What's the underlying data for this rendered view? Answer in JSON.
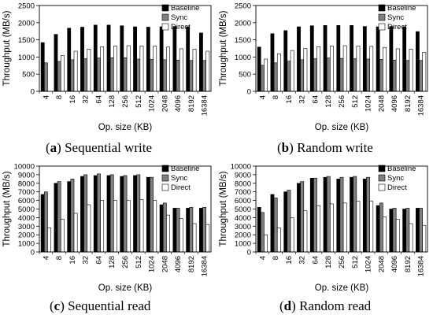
{
  "figure": {
    "captions": [
      {
        "letter": "a",
        "text": "Sequential write"
      },
      {
        "letter": "b",
        "text": "Random write"
      },
      {
        "letter": "c",
        "text": "Sequential read"
      },
      {
        "letter": "d",
        "text": "Random read"
      }
    ]
  },
  "chart_data": [
    {
      "type": "bar",
      "categories": [
        "4",
        "8",
        "16",
        "32",
        "64",
        "128",
        "256",
        "512",
        "1024",
        "2048",
        "4096",
        "8192",
        "16384"
      ],
      "xlabel": "Op. size (KB)",
      "ylabel": "Throughput (MB/s)",
      "ylim": [
        0,
        2500
      ],
      "yticks": [
        0,
        500,
        1000,
        1500,
        2000,
        2500
      ],
      "legend_position": "top-right",
      "grid": false,
      "series": [
        {
          "name": "Baseline",
          "color": "#000000",
          "values": [
            1420,
            1660,
            1840,
            1870,
            1930,
            1930,
            1910,
            1880,
            1870,
            1880,
            1890,
            1880,
            1700
          ]
        },
        {
          "name": "Sync",
          "color": "#808080",
          "values": [
            830,
            870,
            920,
            950,
            970,
            980,
            980,
            940,
            930,
            920,
            910,
            900,
            900
          ]
        },
        {
          "name": "Direct",
          "color": "#ffffff",
          "values": [
            0,
            1040,
            1170,
            1230,
            1300,
            1320,
            1330,
            1320,
            1320,
            1290,
            1240,
            1230,
            1170
          ]
        }
      ]
    },
    {
      "type": "bar",
      "categories": [
        "4",
        "8",
        "16",
        "32",
        "64",
        "128",
        "256",
        "512",
        "1024",
        "2048",
        "4096",
        "8192",
        "16384"
      ],
      "xlabel": "Op. size (KB)",
      "ylabel": "Throughput (MB/s)",
      "ylim": [
        0,
        2500
      ],
      "yticks": [
        0,
        500,
        1000,
        1500,
        2000,
        2500
      ],
      "legend_position": "top-right",
      "grid": false,
      "series": [
        {
          "name": "Baseline",
          "color": "#000000",
          "values": [
            1290,
            1680,
            1770,
            1880,
            1910,
            1920,
            1920,
            1920,
            1890,
            1880,
            1890,
            1880,
            1740
          ]
        },
        {
          "name": "Sync",
          "color": "#808080",
          "values": [
            760,
            830,
            880,
            920,
            950,
            970,
            960,
            950,
            940,
            930,
            910,
            900,
            900
          ]
        },
        {
          "name": "Direct",
          "color": "#ffffff",
          "values": [
            940,
            1090,
            1190,
            1250,
            1300,
            1320,
            1330,
            1320,
            1310,
            1280,
            1240,
            1230,
            1140
          ]
        }
      ]
    },
    {
      "type": "bar",
      "categories": [
        "4",
        "8",
        "16",
        "32",
        "64",
        "128",
        "256",
        "512",
        "1024",
        "2048",
        "4096",
        "8192",
        "16384"
      ],
      "xlabel": "Op. size (KB)",
      "ylabel": "Throughput (MB/s)",
      "ylim": [
        0,
        10000
      ],
      "yticks": [
        0,
        1000,
        2000,
        3000,
        4000,
        5000,
        6000,
        7000,
        8000,
        9000,
        10000
      ],
      "legend_position": "top-right",
      "grid": false,
      "series": [
        {
          "name": "Baseline",
          "color": "#000000",
          "values": [
            6700,
            8000,
            8200,
            8800,
            8900,
            8900,
            8800,
            8900,
            8700,
            5500,
            5100,
            5100,
            5100
          ]
        },
        {
          "name": "Sync",
          "color": "#808080",
          "values": [
            7000,
            8200,
            8500,
            9000,
            9100,
            9000,
            8900,
            9000,
            8700,
            5700,
            5100,
            5200,
            5200
          ]
        },
        {
          "name": "Direct",
          "color": "#ffffff",
          "values": [
            2800,
            3800,
            4500,
            5500,
            6000,
            6000,
            6000,
            6100,
            6000,
            4300,
            3900,
            3300,
            3200
          ]
        }
      ]
    },
    {
      "type": "bar",
      "categories": [
        "4",
        "8",
        "16",
        "32",
        "64",
        "128",
        "256",
        "512",
        "1024",
        "2048",
        "4096",
        "8192",
        "16384"
      ],
      "xlabel": "Op. size (KB)",
      "ylabel": "Throughput (MB/s)",
      "ylim": [
        0,
        10000
      ],
      "yticks": [
        0,
        1000,
        2000,
        3000,
        4000,
        5000,
        6000,
        7000,
        8000,
        9000,
        10000
      ],
      "legend_position": "top-right",
      "grid": false,
      "series": [
        {
          "name": "Baseline",
          "color": "#000000",
          "values": [
            5200,
            6700,
            7000,
            8000,
            8600,
            8700,
            8500,
            8700,
            8500,
            5400,
            5000,
            5000,
            5100
          ]
        },
        {
          "name": "Sync",
          "color": "#808080",
          "values": [
            4600,
            6300,
            7200,
            8200,
            8600,
            8800,
            8700,
            8800,
            8700,
            5700,
            5100,
            5100,
            5100
          ]
        },
        {
          "name": "Direct",
          "color": "#ffffff",
          "values": [
            2000,
            2800,
            4000,
            4800,
            5400,
            5600,
            5700,
            5900,
            5900,
            4100,
            3800,
            3300,
            3100
          ]
        }
      ]
    }
  ]
}
